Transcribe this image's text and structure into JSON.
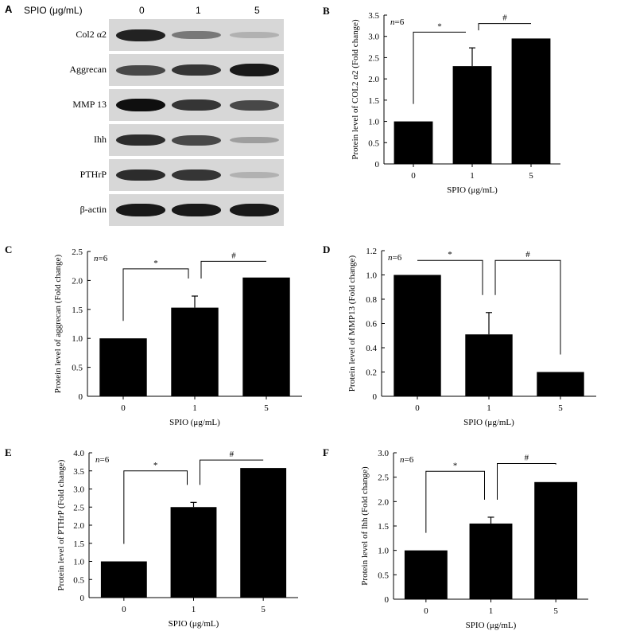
{
  "figure": {
    "panel_labels": [
      "A",
      "B",
      "C",
      "D",
      "E",
      "F"
    ],
    "western_blot": {
      "header_label": "SPIO (μg/mL)",
      "lanes": [
        "0",
        "1",
        "5"
      ],
      "rows": [
        {
          "name": "Col2 α2",
          "intensity": [
            0.9,
            0.45,
            0.15
          ]
        },
        {
          "name": "Aggrecan",
          "intensity": [
            0.7,
            0.8,
            0.95
          ]
        },
        {
          "name": "MMP 13",
          "intensity": [
            1.0,
            0.8,
            0.7
          ]
        },
        {
          "name": "Ihh",
          "intensity": [
            0.85,
            0.7,
            0.25
          ]
        },
        {
          "name": "PTHrP",
          "intensity": [
            0.85,
            0.8,
            0.15
          ]
        },
        {
          "name": "β-actin",
          "intensity": [
            0.95,
            0.95,
            0.95
          ]
        }
      ]
    }
  },
  "chart_data": [
    {
      "panel": "B",
      "type": "bar",
      "categories": [
        "0",
        "1",
        "5"
      ],
      "values": [
        1.0,
        2.3,
        2.95
      ],
      "errors": [
        0,
        0.43,
        0
      ],
      "xlabel": "SPIO (μg/mL)",
      "ylabel": "Protein level of COL2 α2 (Fold change)",
      "ylim": [
        0,
        3.5
      ],
      "yticks": [
        0,
        0.5,
        1.0,
        1.5,
        2.0,
        2.5,
        3.0,
        3.5
      ],
      "ytick_labels": [
        "0",
        "0.5",
        "1.0",
        "1.5",
        "2.0",
        "2.5",
        "3.0",
        "3.5"
      ],
      "n_italic": "n",
      "n_rest": "=6",
      "brackets": [
        {
          "from": 0,
          "to": 1,
          "symbol": "*",
          "y": 3.1
        },
        {
          "from": 1,
          "to": 2,
          "symbol": "#",
          "y": 3.3
        }
      ]
    },
    {
      "panel": "C",
      "type": "bar",
      "categories": [
        "0",
        "1",
        "5"
      ],
      "values": [
        1.0,
        1.53,
        2.05
      ],
      "errors": [
        0,
        0.2,
        0
      ],
      "xlabel": "SPIO (μg/mL)",
      "ylabel": "Protein level of aggrecan (Fold change)",
      "ylim": [
        0,
        2.5
      ],
      "yticks": [
        0,
        0.5,
        1.0,
        1.5,
        2.0,
        2.5
      ],
      "ytick_labels": [
        "0",
        "0.5",
        "1.0",
        "1.5",
        "2.0",
        "2.5"
      ],
      "n_italic": "n",
      "n_rest": "=6",
      "brackets": [
        {
          "from": 0,
          "to": 1,
          "symbol": "*",
          "y": 2.2
        },
        {
          "from": 1,
          "to": 2,
          "symbol": "#",
          "y": 2.33
        }
      ]
    },
    {
      "panel": "D",
      "type": "bar",
      "categories": [
        "0",
        "1",
        "5"
      ],
      "values": [
        1.0,
        0.51,
        0.2
      ],
      "errors": [
        0,
        0.18,
        0
      ],
      "xlabel": "SPIO (μg/mL)",
      "ylabel": "Protein level of MMP13 (Fold change)",
      "ylim": [
        0,
        1.2
      ],
      "yticks": [
        0,
        0.2,
        0.4,
        0.6,
        0.8,
        1.0,
        1.2
      ],
      "ytick_labels": [
        "0",
        "0.2",
        "0.4",
        "0.6",
        "0.8",
        "1.0",
        "1.2"
      ],
      "n_italic": "n",
      "n_rest": "=6",
      "brackets": [
        {
          "from": 0,
          "to": 1,
          "symbol": "*",
          "y": 1.12
        },
        {
          "from": 1,
          "to": 2,
          "symbol": "#",
          "y": 1.12
        }
      ]
    },
    {
      "panel": "E",
      "type": "bar",
      "categories": [
        "0",
        "1",
        "5"
      ],
      "values": [
        1.0,
        2.5,
        3.58
      ],
      "errors": [
        0,
        0.13,
        0
      ],
      "xlabel": "SPIO (μg/mL)",
      "ylabel": "Protein level of PTHrP (Fold change)",
      "ylim": [
        0,
        4.0
      ],
      "yticks": [
        0,
        0.5,
        1.0,
        1.5,
        2.0,
        2.5,
        3.0,
        3.5,
        4.0
      ],
      "ytick_labels": [
        "0",
        "0.5",
        "1.0",
        "1.5",
        "2.0",
        "2.5",
        "3.0",
        "3.5",
        "4.0"
      ],
      "n_italic": "n",
      "n_rest": "=6",
      "brackets": [
        {
          "from": 0,
          "to": 1,
          "symbol": "*",
          "y": 3.5
        },
        {
          "from": 1,
          "to": 2,
          "symbol": "#",
          "y": 3.8
        }
      ]
    },
    {
      "panel": "F",
      "type": "bar",
      "categories": [
        "0",
        "1",
        "5"
      ],
      "values": [
        1.0,
        1.55,
        2.4
      ],
      "errors": [
        0,
        0.13,
        0
      ],
      "xlabel": "SPIO (μg/mL)",
      "ylabel": "Protein level of Ihh (Fold change)",
      "ylim": [
        0,
        3.0
      ],
      "yticks": [
        0,
        0.5,
        1.0,
        1.5,
        2.0,
        2.5,
        3.0
      ],
      "ytick_labels": [
        "0",
        "0.5",
        "1.0",
        "1.5",
        "2.0",
        "2.5",
        "3.0"
      ],
      "n_italic": "n",
      "n_rest": "=6",
      "brackets": [
        {
          "from": 0,
          "to": 1,
          "symbol": "*",
          "y": 2.62
        },
        {
          "from": 1,
          "to": 2,
          "symbol": "#",
          "y": 2.78
        }
      ]
    }
  ]
}
